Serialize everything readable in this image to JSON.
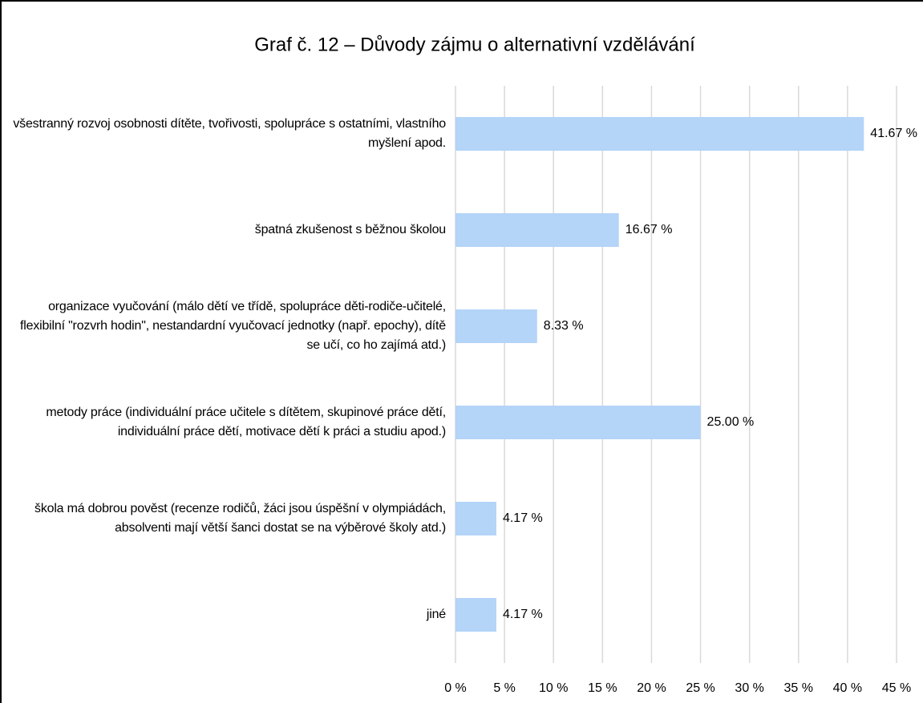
{
  "chart_data": {
    "type": "bar",
    "orientation": "horizontal",
    "title": "Graf č. 12 – Důvody zájmu o alternativní vzdělávání",
    "categories": [
      "všestranný rozvoj osobnosti dítěte, tvořivosti, spolupráce s ostatními, vlastního myšlení apod.",
      "špatná zkušenost s běžnou školou",
      "organizace vyučování (málo dětí ve třídě, spolupráce děti-rodiče-učitelé, flexibilní \"rozvrh hodin\", nestandardní vyučovací jednotky (např. epochy), dítě se učí, co ho zajímá atd.)",
      "metody práce (individuální práce učitele s dítětem, skupinové práce dětí, individuální práce dětí, motivace dětí k práci a studiu apod.)",
      "škola má dobrou pověst (recenze rodičů, žáci jsou úspěšní v olympiádách, absolventi mají větší šanci dostat se na výběrové školy atd.)",
      "jiné"
    ],
    "values": [
      41.67,
      16.67,
      8.33,
      25.0,
      4.17,
      4.17
    ],
    "value_labels": [
      "41.67 %",
      "16.67 %",
      "8.33 %",
      "25.00 %",
      "4.17 %",
      "4.17 %"
    ],
    "color": "#b4d4f8",
    "xlim": [
      0,
      45
    ],
    "xticks": [
      {
        "value": 0,
        "label": "0 %"
      },
      {
        "value": 5,
        "label": "5 %"
      },
      {
        "value": 10,
        "label": "10 %"
      },
      {
        "value": 15,
        "label": "15 %"
      },
      {
        "value": 20,
        "label": "20 %"
      },
      {
        "value": 25,
        "label": "25 %"
      },
      {
        "value": 30,
        "label": "30 %"
      },
      {
        "value": 35,
        "label": "35 %"
      },
      {
        "value": 40,
        "label": "40 %"
      },
      {
        "value": 45,
        "label": "45 %"
      }
    ],
    "grid": true
  }
}
